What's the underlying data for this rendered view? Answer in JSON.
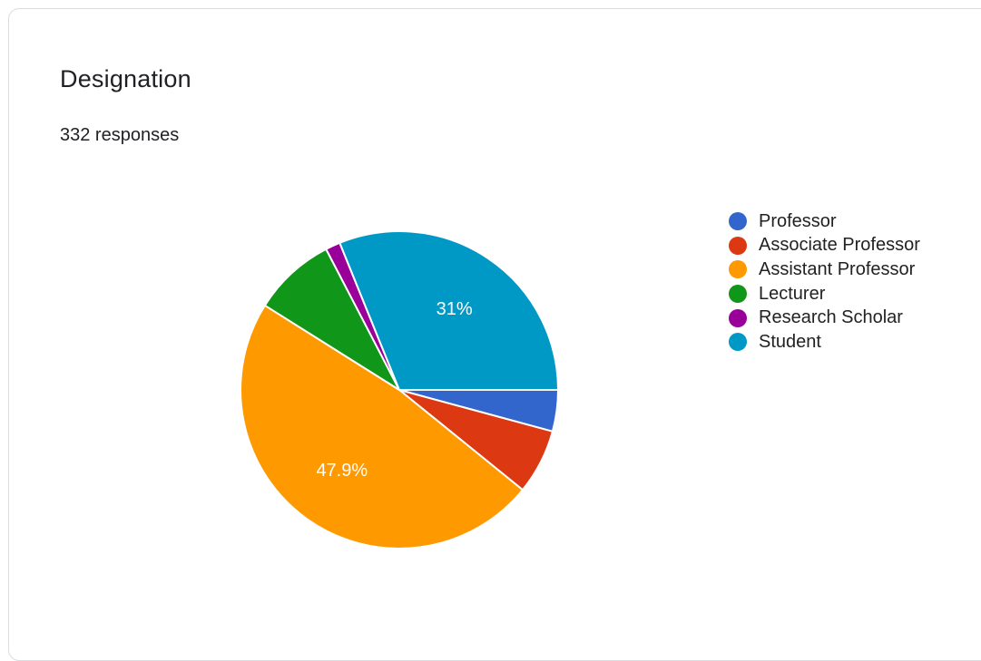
{
  "card": {
    "title": "Designation",
    "responses": "332 responses"
  },
  "chart_data": {
    "type": "pie",
    "title": "Designation",
    "total_responses": 332,
    "categories": [
      "Professor",
      "Associate Professor",
      "Assistant Professor",
      "Lecturer",
      "Research Scholar",
      "Student"
    ],
    "values": [
      4.2,
      6.6,
      47.9,
      8.4,
      1.5,
      31.0
    ],
    "labels_shown": [
      "",
      "",
      "47.9%",
      "",
      "",
      "31%"
    ],
    "colors": [
      "#3366cc",
      "#dc3912",
      "#ff9900",
      "#109618",
      "#990099",
      "#0099c6"
    ],
    "legend": "right"
  }
}
